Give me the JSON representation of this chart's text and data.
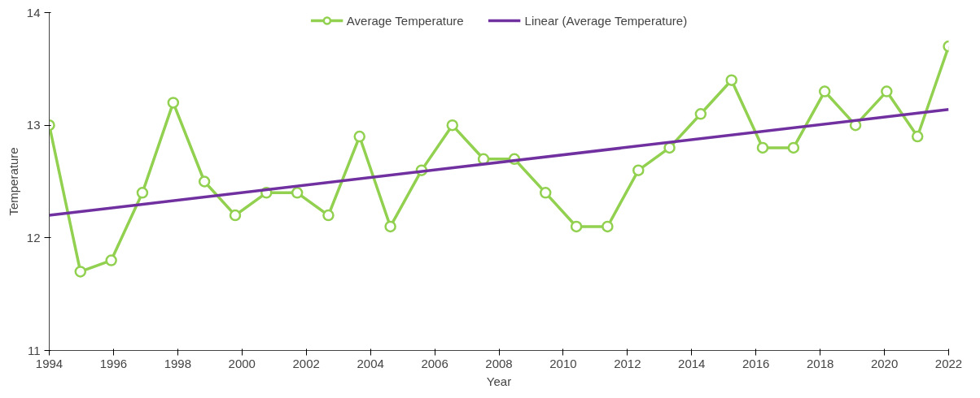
{
  "chart_data": {
    "type": "line",
    "xlabel": "Year",
    "ylabel": "Temperature",
    "xlim": [
      1994,
      2022
    ],
    "xticks": [
      1994,
      1996,
      1998,
      2000,
      2002,
      2004,
      2006,
      2008,
      2010,
      2012,
      2014,
      2016,
      2018,
      2020,
      2022
    ],
    "ylim": [
      11,
      14
    ],
    "yticks": [
      11,
      12,
      13,
      14
    ],
    "grid": false,
    "legend": "top",
    "marker": "circle",
    "line_style": "solid",
    "x": [
      1994,
      1994.97,
      1995.93,
      1996.9,
      1997.86,
      1998.83,
      1999.79,
      2000.76,
      2001.72,
      2002.69,
      2003.66,
      2004.62,
      2005.59,
      2006.55,
      2007.52,
      2008.48,
      2009.45,
      2010.41,
      2011.38,
      2012.34,
      2013.31,
      2014.28,
      2015.24,
      2016.21,
      2017.17,
      2018.14,
      2019.1,
      2020.07,
      2021.03,
      2022
    ],
    "series": [
      {
        "name": "Average Temperature",
        "color": "#92d050",
        "values": [
          13.0,
          11.7,
          11.8,
          12.4,
          13.2,
          12.5,
          12.2,
          12.4,
          12.4,
          12.2,
          12.9,
          12.1,
          12.6,
          13.0,
          12.7,
          12.7,
          12.4,
          12.1,
          12.1,
          12.6,
          12.8,
          13.1,
          13.4,
          12.8,
          12.8,
          13.3,
          13.0,
          13.3,
          12.9,
          13.7
        ]
      },
      {
        "name": "Linear (Average Temperature)",
        "color": "#7030a0",
        "type": "line",
        "marker": "none",
        "x": [
          1994,
          2022
        ],
        "values": [
          12.2,
          13.14
        ]
      }
    ]
  }
}
